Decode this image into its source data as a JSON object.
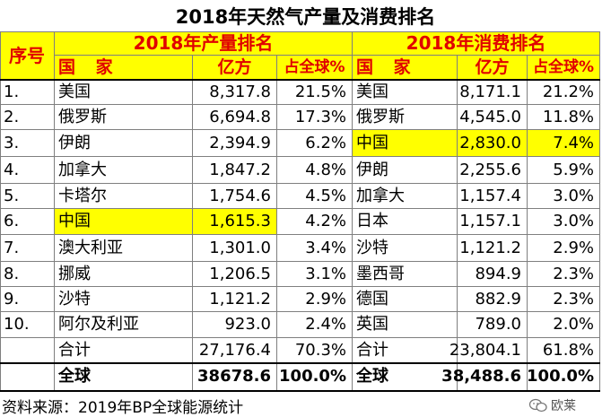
{
  "title": "2018年天然气产量及消费排名",
  "headers": {
    "seq": "序号",
    "production_title": "2018年产量排名",
    "consumption_title": "2018年消费排名",
    "country": "国 家",
    "unit": "亿方",
    "share": "占全球%"
  },
  "rows": [
    {
      "rank": "1.",
      "p_country": "美国",
      "p_value": "8,317.8",
      "p_share": "21.5%",
      "c_country": "美国",
      "c_value": "8,171.1",
      "c_share": "21.2%",
      "p_hl": false,
      "c_hl": false
    },
    {
      "rank": "2.",
      "p_country": "俄罗斯",
      "p_value": "6,694.8",
      "p_share": "17.3%",
      "c_country": "俄罗斯",
      "c_value": "4,545.0",
      "c_share": "11.8%",
      "p_hl": false,
      "c_hl": false
    },
    {
      "rank": "3.",
      "p_country": "伊朗",
      "p_value": "2,394.9",
      "p_share": "6.2%",
      "c_country": "中国",
      "c_value": "2,830.0",
      "c_share": "7.4%",
      "p_hl": false,
      "c_hl": true
    },
    {
      "rank": "4.",
      "p_country": "加拿大",
      "p_value": "1,847.2",
      "p_share": "4.8%",
      "c_country": "伊朗",
      "c_value": "2,255.6",
      "c_share": "5.9%",
      "p_hl": false,
      "c_hl": false
    },
    {
      "rank": "5.",
      "p_country": "卡塔尔",
      "p_value": "1,754.6",
      "p_share": "4.5%",
      "c_country": "加拿大",
      "c_value": "1,157.4",
      "c_share": "3.0%",
      "p_hl": false,
      "c_hl": false
    },
    {
      "rank": "6.",
      "p_country": "中国",
      "p_value": "1,615.3",
      "p_share": "4.2%",
      "c_country": "日本",
      "c_value": "1,157.1",
      "c_share": "3.0%",
      "p_hl": true,
      "c_hl": false
    },
    {
      "rank": "7.",
      "p_country": "澳大利亚",
      "p_value": "1,301.0",
      "p_share": "3.4%",
      "c_country": "沙特",
      "c_value": "1,121.2",
      "c_share": "2.9%",
      "p_hl": false,
      "c_hl": false
    },
    {
      "rank": "8.",
      "p_country": "挪威",
      "p_value": "1,206.5",
      "p_share": "3.1%",
      "c_country": "墨西哥",
      "c_value": "894.9",
      "c_share": "2.3%",
      "p_hl": false,
      "c_hl": false
    },
    {
      "rank": "9.",
      "p_country": "沙特",
      "p_value": "1,121.2",
      "p_share": "2.9%",
      "c_country": "德国",
      "c_value": "882.9",
      "c_share": "2.3%",
      "p_hl": false,
      "c_hl": false
    },
    {
      "rank": "10.",
      "p_country": "阿尔及利亚",
      "p_value": "923.0",
      "p_share": "2.4%",
      "c_country": "英国",
      "c_value": "789.0",
      "c_share": "2.0%",
      "p_hl": false,
      "c_hl": false
    }
  ],
  "subtotal": {
    "label": "合计",
    "p_value": "27,176.4",
    "p_share": "70.3%",
    "c_label": "合计",
    "c_value": "23,804.1",
    "c_share": "61.8%"
  },
  "total": {
    "label": "全球",
    "p_value": "38678.6",
    "p_share": "100.0%",
    "c_label": "全球",
    "c_value": "38,488.6",
    "c_share": "100.0%"
  },
  "source": "资料来源：2019年BP全球能源统计",
  "watermark": "欧莱",
  "colors": {
    "highlight": "#ffff00",
    "header_text": "#e00000",
    "grid": "#7f7f7f",
    "marker": "#1f7a1f"
  }
}
